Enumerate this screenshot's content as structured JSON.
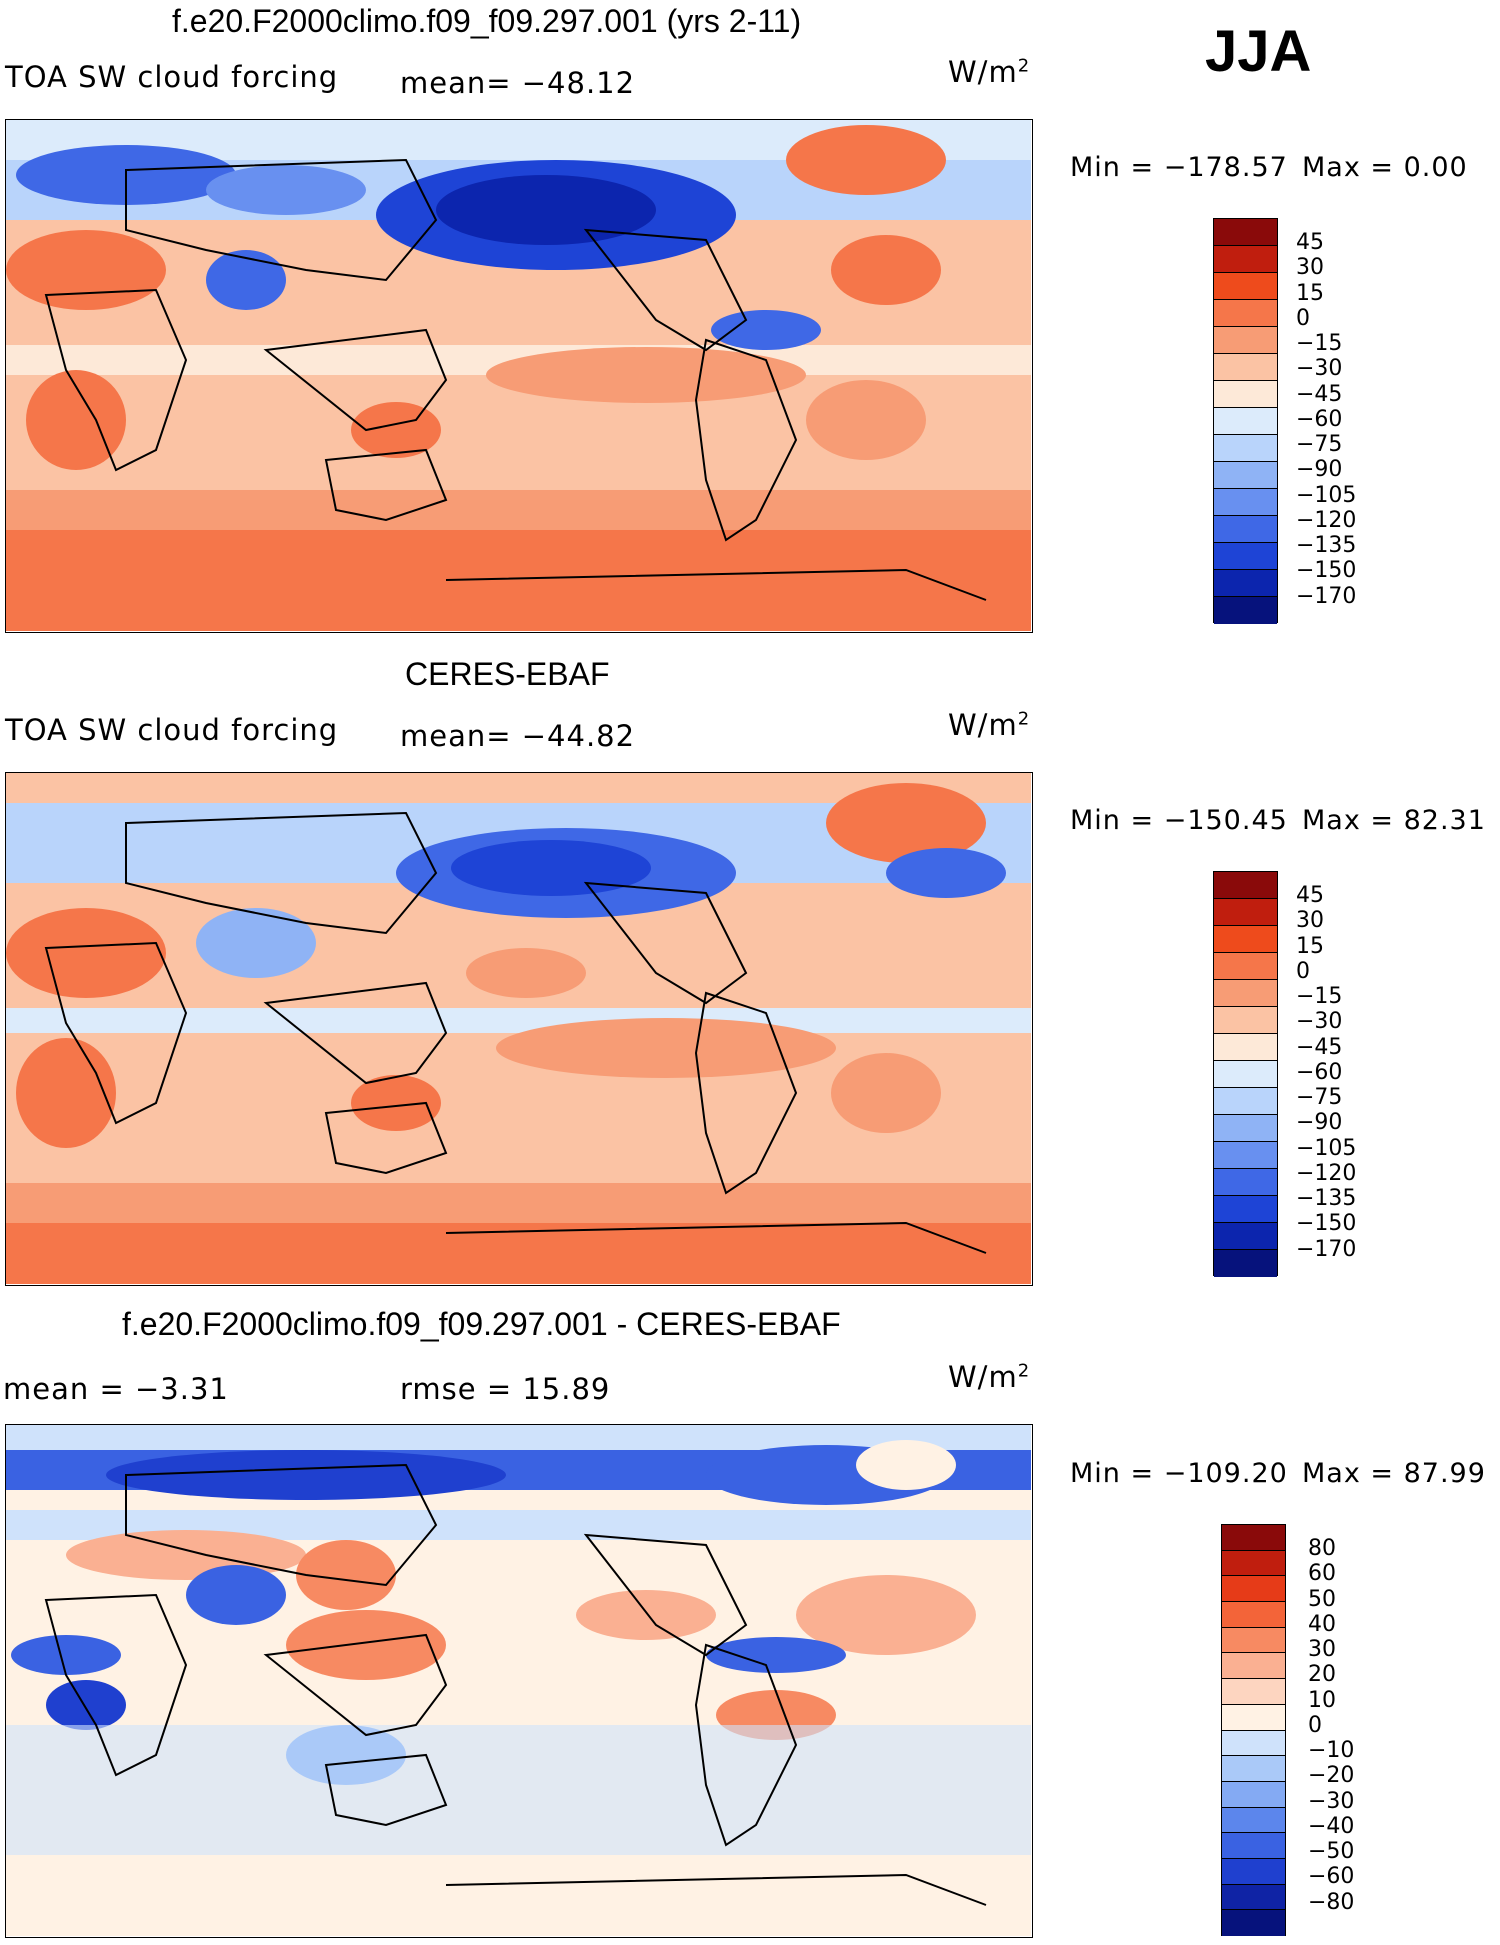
{
  "season": "JJA",
  "colors": {
    "scale_a": [
      "#8a0a0a",
      "#c01e0e",
      "#ee4b1c",
      "#f5764a",
      "#f79c75",
      "#fbc3a4",
      "#fde9d8",
      "#dcebfb",
      "#b9d4fb",
      "#8fb3f5",
      "#6890f0",
      "#3f68e6",
      "#1e44d6",
      "#0c25ae",
      "#06127c"
    ],
    "scale_b": [
      "#8a0a0a",
      "#c01e0e",
      "#e63b18",
      "#f36439",
      "#f78a62",
      "#fab092",
      "#fdd5c0",
      "#fff2e4",
      "#cfe2fb",
      "#aac9f8",
      "#84aaf3",
      "#5c86ec",
      "#3a62e2",
      "#1f40cf",
      "#0f23a5",
      "#06127c"
    ]
  },
  "panels": [
    {
      "title": "f.e20.F2000climo.f09_f09.297.001 (yrs 2-11)",
      "left_label": "TOA SW cloud forcing",
      "center_label": "mean= −48.12",
      "units": "W/m",
      "units_sup": "2",
      "min_label": "Min = −178.57",
      "max_label": "Max =   0.00",
      "ticks": [
        "45",
        "30",
        "15",
        "0",
        "−15",
        "−30",
        "−45",
        "−60",
        "−75",
        "−90",
        "−105",
        "−120",
        "−135",
        "−150",
        "−170"
      ]
    },
    {
      "title": "CERES-EBAF",
      "left_label": "TOA SW cloud forcing",
      "center_label": "mean= −44.82",
      "units": "W/m",
      "units_sup": "2",
      "min_label": "Min = −150.45",
      "max_label": "Max =  82.31",
      "ticks": [
        "45",
        "30",
        "15",
        "0",
        "−15",
        "−30",
        "−45",
        "−60",
        "−75",
        "−90",
        "−105",
        "−120",
        "−135",
        "−150",
        "−170"
      ]
    },
    {
      "title": "f.e20.F2000climo.f09_f09.297.001 - CERES-EBAF",
      "left_label": "mean =   −3.31",
      "center_label": "rmse =   15.89",
      "units": "W/m",
      "units_sup": "2",
      "min_label": "Min = −109.20",
      "max_label": "Max =  87.99",
      "ticks": [
        "80",
        "60",
        "50",
        "40",
        "30",
        "20",
        "10",
        "0",
        "−10",
        "−20",
        "−30",
        "−40",
        "−50",
        "−60",
        "−80"
      ]
    }
  ]
}
